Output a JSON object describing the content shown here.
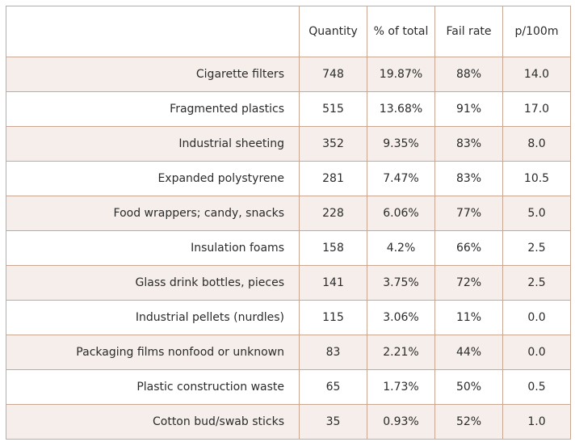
{
  "table": {
    "columns": {
      "item": "",
      "quantity": "Quantity",
      "percent": "% of total",
      "fail_rate": "Fail rate",
      "per100m": "p/100m"
    },
    "rows": [
      {
        "item": "Cigarette filters",
        "quantity": "748",
        "percent": "19.87%",
        "fail_rate": "88%",
        "per100m": "14.0"
      },
      {
        "item": "Fragmented plastics",
        "quantity": "515",
        "percent": "13.68%",
        "fail_rate": "91%",
        "per100m": "17.0"
      },
      {
        "item": "Industrial sheeting",
        "quantity": "352",
        "percent": "9.35%",
        "fail_rate": "83%",
        "per100m": "8.0"
      },
      {
        "item": "Expanded polystyrene",
        "quantity": "281",
        "percent": "7.47%",
        "fail_rate": "83%",
        "per100m": "10.5"
      },
      {
        "item": "Food wrappers; candy, snacks",
        "quantity": "228",
        "percent": "6.06%",
        "fail_rate": "77%",
        "per100m": "5.0"
      },
      {
        "item": "Insulation foams",
        "quantity": "158",
        "percent": "4.2%",
        "fail_rate": "66%",
        "per100m": "2.5"
      },
      {
        "item": "Glass drink bottles, pieces",
        "quantity": "141",
        "percent": "3.75%",
        "fail_rate": "72%",
        "per100m": "2.5"
      },
      {
        "item": "Industrial pellets (nurdles)",
        "quantity": "115",
        "percent": "3.06%",
        "fail_rate": "11%",
        "per100m": "0.0"
      },
      {
        "item": "Packaging films nonfood or unknown",
        "quantity": "83",
        "percent": "2.21%",
        "fail_rate": "44%",
        "per100m": "0.0"
      },
      {
        "item": "Plastic construction waste",
        "quantity": "65",
        "percent": "1.73%",
        "fail_rate": "50%",
        "per100m": "0.5"
      },
      {
        "item": "Cotton bud/swab sticks",
        "quantity": "35",
        "percent": "0.93%",
        "fail_rate": "52%",
        "per100m": "1.0"
      }
    ]
  },
  "colors": {
    "border": "#c9a793",
    "stripe": "#f5eeea",
    "text": "#2b2b2b"
  }
}
